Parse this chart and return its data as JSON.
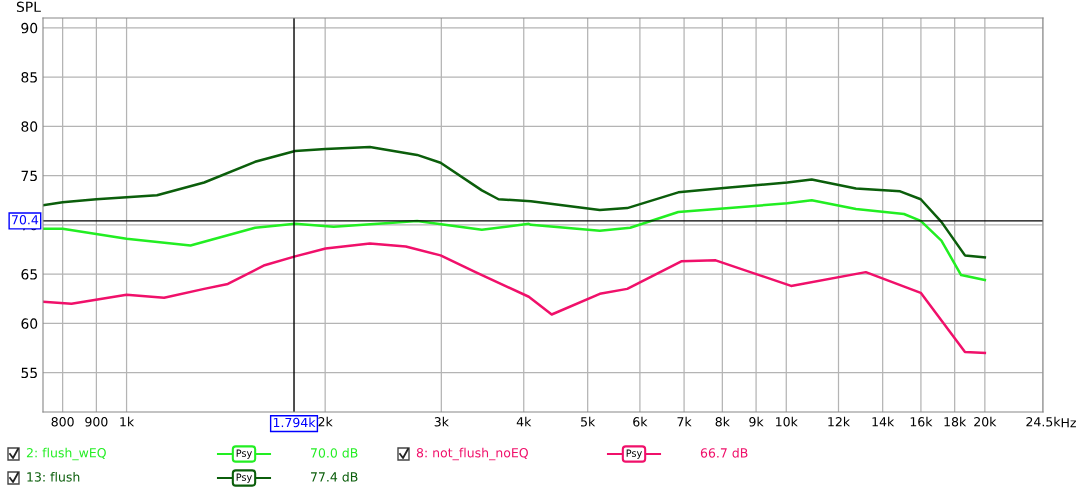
{
  "chart_data": {
    "type": "line",
    "ylabel": "SPL",
    "log": "x",
    "grid": true,
    "legend": "bottom",
    "line_style": "solid",
    "xlim": [
      747,
      24500
    ],
    "ylim": [
      51,
      91
    ],
    "xticks": [
      800,
      900,
      {
        "value": 1000,
        "label": "1k"
      },
      {
        "value": 2000,
        "label": "2k"
      },
      {
        "value": 3000,
        "label": "3k"
      },
      {
        "value": 4000,
        "label": "4k"
      },
      {
        "value": 5000,
        "label": "5k"
      },
      {
        "value": 6000,
        "label": "6k"
      },
      {
        "value": 7000,
        "label": "7k"
      },
      {
        "value": 8000,
        "label": "8k"
      },
      {
        "value": 9000,
        "label": "9k"
      },
      {
        "value": 10000,
        "label": "10k"
      },
      {
        "value": 12000,
        "label": "12k"
      },
      {
        "value": 14000,
        "label": "14k"
      },
      {
        "value": 16000,
        "label": "16k"
      },
      {
        "value": 18000,
        "label": "18k"
      },
      {
        "value": 20000,
        "label": "20k"
      },
      {
        "value": 24500,
        "label": "24.5k"
      }
    ],
    "xlabel": "Hz",
    "yticks": [
      55,
      60,
      65,
      70,
      75,
      80,
      85,
      90
    ],
    "ref_lines": [
      {
        "axis": "y",
        "value": 70.4,
        "label": "70.4",
        "color": "#000000"
      },
      {
        "axis": "x",
        "value": 1794,
        "label": "1.794k",
        "color": "#000000"
      }
    ],
    "annotations": [
      "70.0 dB",
      "77.4 dB",
      "66.7 dB",
      "Psy",
      "Psy",
      "Psy"
    ],
    "series": [
      {
        "name": "2: flush_wEQ",
        "color": "#22ee22",
        "x": [
          747,
          800,
          1000,
          1250,
          1566,
          1801,
          2060,
          2500,
          2757,
          3456,
          4071,
          4101,
          5216,
          5800,
          6860,
          8199,
          10035,
          10930,
          12755,
          15080,
          15990,
          17185,
          18410,
          20000
        ],
        "values": [
          69.6,
          69.6,
          68.6,
          67.9,
          69.7,
          70.1,
          69.8,
          70.2,
          70.4,
          69.5,
          70.1,
          70.0,
          69.4,
          69.7,
          71.3,
          71.7,
          72.2,
          72.5,
          71.6,
          71.1,
          70.4,
          68.4,
          64.9,
          64.4
        ]
      },
      {
        "name": "13: flush",
        "color": "#0b5e0b",
        "x": [
          747,
          800,
          900,
          1000,
          1112,
          1311,
          1566,
          1801,
          2003,
          2338,
          2757,
          2992,
          3456,
          3663,
          4101,
          5216,
          5740,
          6860,
          8199,
          10035,
          10930,
          12755,
          14880,
          15990,
          17185,
          18660,
          20000
        ],
        "values": [
          72.0,
          72.3,
          72.6,
          72.8,
          73.0,
          74.3,
          76.4,
          77.5,
          77.7,
          77.9,
          77.1,
          76.3,
          73.5,
          72.6,
          72.4,
          71.5,
          71.7,
          73.3,
          73.8,
          74.3,
          74.6,
          73.7,
          73.4,
          72.6,
          70.3,
          66.9,
          66.7
        ]
      },
      {
        "name": "8: not_flush_noEQ",
        "color": "#f0106a",
        "x": [
          747,
          825,
          1000,
          1140,
          1311,
          1424,
          1619,
          1801,
          2003,
          2338,
          2650,
          2992,
          3380,
          4071,
          4410,
          5216,
          5740,
          6932,
          7816,
          10170,
          13200,
          15990,
          18660,
          20000
        ],
        "values": [
          62.2,
          62.0,
          62.9,
          62.6,
          63.5,
          64.0,
          65.9,
          66.8,
          67.6,
          68.1,
          67.8,
          66.9,
          65.2,
          62.7,
          60.9,
          63.0,
          63.5,
          66.3,
          66.4,
          63.8,
          65.2,
          63.1,
          57.1,
          57.0
        ]
      }
    ]
  }
}
